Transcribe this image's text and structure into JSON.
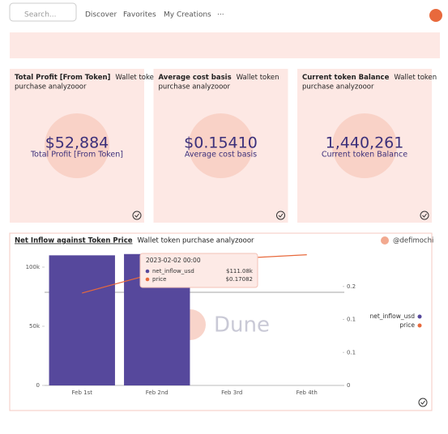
{
  "nav": {
    "search": "Search...",
    "links": [
      "Discover",
      "Favorites",
      "My Creations"
    ],
    "more": "···"
  },
  "cards": [
    {
      "title": "Total Profit [From Token]",
      "subtitle": "Wallet token purchase analyzooor",
      "value": "$52,884",
      "label": "Total Profit [From Token]"
    },
    {
      "title": "Average cost basis",
      "subtitle": "Wallet token purchase analyzooor",
      "value": "$0.15410",
      "label": "Average cost basis"
    },
    {
      "title": "Current token Balance",
      "subtitle": "Wallet token purchase analyzooor",
      "value": "1,440,261",
      "label": "Current token Balance"
    }
  ],
  "chart": {
    "type": "bar",
    "title": "Net Inflow against Token Price",
    "subtitle": "Wallet token purchase analyzooor",
    "author": "@defimochi",
    "watermark": "Dune",
    "categories": [
      "Feb 1st",
      "Feb 2nd",
      "Feb 3rd",
      "Feb 4th"
    ],
    "series": [
      {
        "name": "net_inflow_usd",
        "color": "#56489c",
        "values": [
          110000,
          111080,
          null,
          null
        ],
        "value_labels": [
          null,
          "$111.08k",
          null,
          null
        ]
      },
      {
        "name": "price",
        "color": "#e8693c",
        "axis": "y2",
        "values": [
          0.14,
          0.17082,
          0.192,
          0.198
        ],
        "value_labels": [
          null,
          "$0.17082",
          null,
          null
        ]
      }
    ],
    "ylim": [
      0,
      111600
    ],
    "yticks": [
      0,
      {
        "value": 50000,
        "label": "50k"
      },
      {
        "value": 100000,
        "label": "100k"
      }
    ],
    "y2lim": [
      0,
      0.2
    ],
    "y2ticks": [
      0,
      {
        "value": 0.05,
        "label": "0.1"
      },
      {
        "value": 0.1,
        "label": "0.1"
      },
      {
        "value": 0.15,
        "label": "0.2"
      }
    ],
    "tooltip": {
      "title": "2023-02-02 00:00",
      "index": 1
    }
  }
}
